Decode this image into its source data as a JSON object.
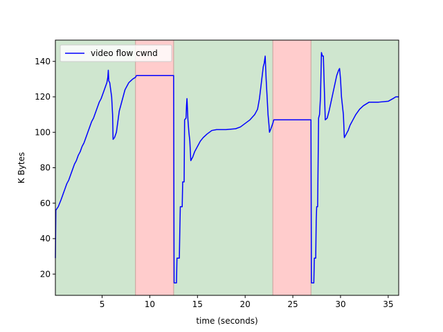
{
  "chart_data": {
    "type": "line",
    "title": "",
    "xlabel": "time (seconds)",
    "ylabel": "K Bytes",
    "xlim": [
      0.1,
      36.1
    ],
    "ylim": [
      8,
      152
    ],
    "xticks": [
      5,
      10,
      15,
      20,
      25,
      30,
      35
    ],
    "yticks": [
      20,
      40,
      60,
      80,
      100,
      120,
      140
    ],
    "grid": false,
    "legend": {
      "placement": "top-left"
    },
    "regions": [
      {
        "x0": 0.1,
        "x1": 8.5,
        "state": "green",
        "color": "#cfe6cf"
      },
      {
        "x0": 8.5,
        "x1": 12.5,
        "state": "red",
        "color": "#ffcccc"
      },
      {
        "x0": 12.5,
        "x1": 22.9,
        "state": "green",
        "color": "#cfe6cf"
      },
      {
        "x0": 22.9,
        "x1": 26.9,
        "state": "red",
        "color": "#ffcccc"
      },
      {
        "x0": 26.9,
        "x1": 36.1,
        "state": "green",
        "color": "#cfe6cf"
      }
    ],
    "series": [
      {
        "name": "video flow cwnd",
        "color": "#0000ff",
        "points": [
          [
            0.1,
            29
          ],
          [
            0.15,
            56
          ],
          [
            0.4,
            58
          ],
          [
            0.7,
            62
          ],
          [
            0.9,
            65
          ],
          [
            1.1,
            68
          ],
          [
            1.3,
            71
          ],
          [
            1.5,
            73
          ],
          [
            1.7,
            76
          ],
          [
            1.9,
            79
          ],
          [
            2.1,
            82
          ],
          [
            2.3,
            84
          ],
          [
            2.5,
            87
          ],
          [
            2.7,
            89
          ],
          [
            2.9,
            92
          ],
          [
            3.1,
            94
          ],
          [
            3.3,
            97
          ],
          [
            3.5,
            100
          ],
          [
            3.7,
            103
          ],
          [
            3.9,
            106
          ],
          [
            4.1,
            108
          ],
          [
            4.3,
            111
          ],
          [
            4.5,
            114
          ],
          [
            4.7,
            117
          ],
          [
            4.9,
            119
          ],
          [
            5.1,
            122
          ],
          [
            5.3,
            125
          ],
          [
            5.5,
            128
          ],
          [
            5.6,
            131
          ],
          [
            5.65,
            135
          ],
          [
            5.7,
            129
          ],
          [
            5.8,
            128
          ],
          [
            6.0,
            120
          ],
          [
            6.1,
            110
          ],
          [
            6.15,
            96
          ],
          [
            6.3,
            97
          ],
          [
            6.5,
            100
          ],
          [
            6.7,
            108
          ],
          [
            6.8,
            112
          ],
          [
            7.0,
            116
          ],
          [
            7.2,
            120
          ],
          [
            7.4,
            124
          ],
          [
            7.6,
            126
          ],
          [
            7.8,
            128
          ],
          [
            8.0,
            129
          ],
          [
            8.2,
            130
          ],
          [
            8.5,
            131
          ],
          [
            8.6,
            132
          ],
          [
            12.5,
            132
          ],
          [
            12.55,
            15
          ],
          [
            12.8,
            15
          ],
          [
            12.85,
            29
          ],
          [
            13.1,
            29
          ],
          [
            13.15,
            45
          ],
          [
            13.2,
            58
          ],
          [
            13.4,
            58
          ],
          [
            13.45,
            72
          ],
          [
            13.6,
            72
          ],
          [
            13.65,
            107
          ],
          [
            13.8,
            108
          ],
          [
            13.85,
            115
          ],
          [
            13.9,
            119
          ],
          [
            14.0,
            107
          ],
          [
            14.1,
            100
          ],
          [
            14.2,
            95
          ],
          [
            14.3,
            84
          ],
          [
            14.5,
            86
          ],
          [
            14.7,
            89
          ],
          [
            15.0,
            92
          ],
          [
            15.3,
            95
          ],
          [
            15.6,
            97
          ],
          [
            16.0,
            99
          ],
          [
            16.5,
            101
          ],
          [
            17.0,
            101.5
          ],
          [
            18.0,
            101.5
          ],
          [
            19.0,
            102
          ],
          [
            19.5,
            103
          ],
          [
            20.0,
            105
          ],
          [
            20.5,
            107
          ],
          [
            21.0,
            110
          ],
          [
            21.3,
            113
          ],
          [
            21.5,
            119
          ],
          [
            21.7,
            128
          ],
          [
            21.9,
            137
          ],
          [
            22.0,
            139
          ],
          [
            22.1,
            143
          ],
          [
            22.2,
            130
          ],
          [
            22.3,
            120
          ],
          [
            22.4,
            110
          ],
          [
            22.5,
            104
          ],
          [
            22.55,
            100
          ],
          [
            22.7,
            102
          ],
          [
            22.9,
            105
          ],
          [
            23.0,
            107
          ],
          [
            26.9,
            107
          ],
          [
            26.95,
            15
          ],
          [
            27.2,
            15
          ],
          [
            27.25,
            29
          ],
          [
            27.4,
            29
          ],
          [
            27.45,
            50
          ],
          [
            27.5,
            58
          ],
          [
            27.6,
            58
          ],
          [
            27.7,
            108
          ],
          [
            27.8,
            110
          ],
          [
            27.9,
            120
          ],
          [
            28.0,
            145
          ],
          [
            28.1,
            143
          ],
          [
            28.2,
            143
          ],
          [
            28.3,
            125
          ],
          [
            28.4,
            107
          ],
          [
            28.6,
            108
          ],
          [
            28.8,
            112
          ],
          [
            29.0,
            117
          ],
          [
            29.2,
            122
          ],
          [
            29.4,
            127
          ],
          [
            29.6,
            132
          ],
          [
            29.8,
            135
          ],
          [
            29.9,
            136
          ],
          [
            30.0,
            130
          ],
          [
            30.1,
            120
          ],
          [
            30.2,
            115
          ],
          [
            30.3,
            110
          ],
          [
            30.4,
            97
          ],
          [
            30.6,
            99
          ],
          [
            30.8,
            101
          ],
          [
            31.0,
            104
          ],
          [
            31.3,
            107
          ],
          [
            31.6,
            110
          ],
          [
            32.0,
            113
          ],
          [
            32.4,
            115
          ],
          [
            33.0,
            117
          ],
          [
            34.0,
            117
          ],
          [
            35.0,
            117.5
          ],
          [
            35.5,
            119
          ],
          [
            35.8,
            120
          ],
          [
            36.1,
            120
          ]
        ]
      }
    ]
  }
}
